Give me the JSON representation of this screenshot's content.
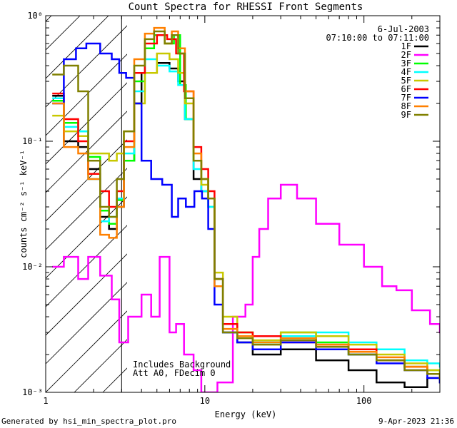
{
  "chart_data": {
    "type": "line",
    "title": "Count Spectra for RHESSI Front Segments",
    "xlabel": "Energy (keV)",
    "ylabel": "counts cm⁻² s⁻¹ keV⁻¹",
    "xscale": "log",
    "yscale": "log",
    "xlim": [
      1,
      300
    ],
    "ylim": [
      0.001,
      1
    ],
    "xticks": [
      {
        "v": 1,
        "label": "1"
      },
      {
        "v": 10,
        "label": "10"
      },
      {
        "v": 100,
        "label": "100"
      }
    ],
    "yticks": [
      {
        "v": 0.001,
        "label": "10⁻³"
      },
      {
        "v": 0.01,
        "label": "10⁻²"
      },
      {
        "v": 0.1,
        "label": "10⁻¹"
      },
      {
        "v": 1,
        "label": "10⁰"
      }
    ],
    "legend_position": "top-right",
    "date": "6-Jul-2003",
    "time_range": "07:10:00 to 07:11:00",
    "annotations": [
      "Includes Background",
      "Att A0, FDecim 0"
    ],
    "low_energy_cutoff_keV": 3,
    "footer_left": "Generated by hsi_min_spectra_plot.pro",
    "footer_right": "9-Apr-2023 21:36",
    "series": [
      {
        "name": "1F",
        "color": "#000000",
        "points": [
          [
            1.1,
            0.23
          ],
          [
            1.3,
            0.1
          ],
          [
            1.6,
            0.09
          ],
          [
            1.85,
            0.06
          ],
          [
            2.2,
            0.025
          ],
          [
            2.5,
            0.02
          ],
          [
            2.8,
            0.03
          ],
          [
            3.1,
            0.07
          ],
          [
            3.6,
            0.2
          ],
          [
            4.0,
            0.35
          ],
          [
            5.0,
            0.42
          ],
          [
            6.0,
            0.38
          ],
          [
            6.8,
            0.3
          ],
          [
            7.5,
            0.15
          ],
          [
            8.5,
            0.05
          ],
          [
            9.5,
            0.04
          ],
          [
            10.5,
            0.035
          ],
          [
            11.5,
            0.008
          ],
          [
            13,
            0.003
          ],
          [
            16,
            0.0025
          ],
          [
            20,
            0.002
          ],
          [
            30,
            0.0022
          ],
          [
            50,
            0.0018
          ],
          [
            80,
            0.0015
          ],
          [
            120,
            0.0012
          ],
          [
            180,
            0.0011
          ],
          [
            250,
            0.0013
          ],
          [
            300,
            0.0012
          ]
        ]
      },
      {
        "name": "2F",
        "color": "#ff00ff",
        "points": [
          [
            1.1,
            0.01
          ],
          [
            1.3,
            0.012
          ],
          [
            1.6,
            0.008
          ],
          [
            1.85,
            0.012
          ],
          [
            2.2,
            0.0085
          ],
          [
            2.6,
            0.0055
          ],
          [
            2.9,
            0.0025
          ],
          [
            3.3,
            0.004
          ],
          [
            4.0,
            0.006
          ],
          [
            4.6,
            0.004
          ],
          [
            5.2,
            0.012
          ],
          [
            6.0,
            0.003
          ],
          [
            6.6,
            0.0035
          ],
          [
            7.4,
            0.002
          ],
          [
            8.5,
            0.0015
          ],
          [
            9.5,
            0.001
          ],
          [
            12,
            0.0012
          ],
          [
            15,
            0.004
          ],
          [
            18,
            0.005
          ],
          [
            20,
            0.012
          ],
          [
            22,
            0.02
          ],
          [
            25,
            0.035
          ],
          [
            30,
            0.045
          ],
          [
            38,
            0.035
          ],
          [
            50,
            0.022
          ],
          [
            70,
            0.015
          ],
          [
            100,
            0.01
          ],
          [
            130,
            0.007
          ],
          [
            160,
            0.0065
          ],
          [
            200,
            0.0045
          ],
          [
            260,
            0.0035
          ],
          [
            300,
            0.003
          ]
        ]
      },
      {
        "name": "3F",
        "color": "#00ff00",
        "points": [
          [
            1.1,
            0.21
          ],
          [
            1.3,
            0.14
          ],
          [
            1.6,
            0.12
          ],
          [
            1.85,
            0.075
          ],
          [
            2.2,
            0.028
          ],
          [
            2.5,
            0.022
          ],
          [
            2.8,
            0.034
          ],
          [
            3.1,
            0.07
          ],
          [
            3.6,
            0.3
          ],
          [
            4.2,
            0.55
          ],
          [
            4.8,
            0.7
          ],
          [
            5.6,
            0.6
          ],
          [
            6.4,
            0.7
          ],
          [
            7.0,
            0.28
          ],
          [
            7.6,
            0.15
          ],
          [
            8.5,
            0.07
          ],
          [
            9.5,
            0.05
          ],
          [
            10.5,
            0.03
          ],
          [
            11.5,
            0.008
          ],
          [
            13,
            0.0035
          ],
          [
            16,
            0.003
          ],
          [
            20,
            0.0025
          ],
          [
            30,
            0.003
          ],
          [
            50,
            0.0025
          ],
          [
            80,
            0.002
          ],
          [
            120,
            0.0018
          ],
          [
            180,
            0.0016
          ],
          [
            250,
            0.0015
          ],
          [
            300,
            0.0014
          ]
        ]
      },
      {
        "name": "4F",
        "color": "#00ffff",
        "points": [
          [
            1.1,
            0.22
          ],
          [
            1.3,
            0.13
          ],
          [
            1.6,
            0.12
          ],
          [
            1.85,
            0.05
          ],
          [
            2.2,
            0.023
          ],
          [
            2.5,
            0.025
          ],
          [
            2.8,
            0.035
          ],
          [
            3.1,
            0.08
          ],
          [
            3.6,
            0.25
          ],
          [
            4.2,
            0.45
          ],
          [
            5.0,
            0.4
          ],
          [
            6.0,
            0.36
          ],
          [
            6.8,
            0.28
          ],
          [
            7.5,
            0.15
          ],
          [
            8.5,
            0.06
          ],
          [
            9.5,
            0.04
          ],
          [
            10.5,
            0.03
          ],
          [
            11.5,
            0.007
          ],
          [
            13,
            0.003
          ],
          [
            16,
            0.0028
          ],
          [
            20,
            0.0025
          ],
          [
            30,
            0.0028
          ],
          [
            50,
            0.003
          ],
          [
            80,
            0.0025
          ],
          [
            120,
            0.0022
          ],
          [
            180,
            0.0018
          ],
          [
            250,
            0.0017
          ],
          [
            300,
            0.0016
          ]
        ]
      },
      {
        "name": "5F",
        "color": "#c8c800",
        "points": [
          [
            1.1,
            0.16
          ],
          [
            1.3,
            0.12
          ],
          [
            1.6,
            0.11
          ],
          [
            1.85,
            0.08
          ],
          [
            2.2,
            0.08
          ],
          [
            2.5,
            0.07
          ],
          [
            2.8,
            0.08
          ],
          [
            3.1,
            0.12
          ],
          [
            3.6,
            0.2
          ],
          [
            4.2,
            0.35
          ],
          [
            5.0,
            0.5
          ],
          [
            6.0,
            0.45
          ],
          [
            6.8,
            0.35
          ],
          [
            7.5,
            0.2
          ],
          [
            8.5,
            0.07
          ],
          [
            9.5,
            0.045
          ],
          [
            10.5,
            0.035
          ],
          [
            11.5,
            0.009
          ],
          [
            13,
            0.004
          ],
          [
            16,
            0.003
          ],
          [
            20,
            0.0026
          ],
          [
            30,
            0.003
          ],
          [
            50,
            0.0028
          ],
          [
            80,
            0.0024
          ],
          [
            120,
            0.002
          ],
          [
            180,
            0.0017
          ],
          [
            250,
            0.0015
          ],
          [
            300,
            0.0014
          ]
        ]
      },
      {
        "name": "6F",
        "color": "#ff0000",
        "points": [
          [
            1.1,
            0.24
          ],
          [
            1.3,
            0.15
          ],
          [
            1.6,
            0.1
          ],
          [
            1.85,
            0.055
          ],
          [
            2.2,
            0.04
          ],
          [
            2.5,
            0.03
          ],
          [
            2.8,
            0.04
          ],
          [
            3.1,
            0.1
          ],
          [
            3.6,
            0.35
          ],
          [
            4.2,
            0.6
          ],
          [
            5.0,
            0.7
          ],
          [
            5.8,
            0.65
          ],
          [
            6.6,
            0.5
          ],
          [
            7.4,
            0.25
          ],
          [
            8.5,
            0.09
          ],
          [
            9.5,
            0.06
          ],
          [
            10.5,
            0.04
          ],
          [
            11.5,
            0.008
          ],
          [
            13,
            0.0035
          ],
          [
            16,
            0.003
          ],
          [
            20,
            0.0028
          ],
          [
            30,
            0.0025
          ],
          [
            50,
            0.0024
          ],
          [
            80,
            0.0022
          ],
          [
            120,
            0.0018
          ],
          [
            180,
            0.0016
          ],
          [
            250,
            0.0014
          ],
          [
            300,
            0.0013
          ]
        ]
      },
      {
        "name": "7F",
        "color": "#0000ff",
        "points": [
          [
            1.1,
            0.2
          ],
          [
            1.3,
            0.45
          ],
          [
            1.55,
            0.55
          ],
          [
            1.8,
            0.6
          ],
          [
            2.2,
            0.5
          ],
          [
            2.6,
            0.45
          ],
          [
            2.9,
            0.35
          ],
          [
            3.2,
            0.32
          ],
          [
            3.6,
            0.2
          ],
          [
            4.0,
            0.07
          ],
          [
            4.6,
            0.05
          ],
          [
            5.4,
            0.045
          ],
          [
            6.2,
            0.025
          ],
          [
            6.8,
            0.035
          ],
          [
            7.6,
            0.03
          ],
          [
            8.6,
            0.04
          ],
          [
            9.6,
            0.035
          ],
          [
            10.5,
            0.02
          ],
          [
            11.5,
            0.005
          ],
          [
            13,
            0.003
          ],
          [
            16,
            0.0025
          ],
          [
            20,
            0.0022
          ],
          [
            30,
            0.0025
          ],
          [
            50,
            0.0022
          ],
          [
            80,
            0.002
          ],
          [
            120,
            0.0017
          ],
          [
            180,
            0.0015
          ],
          [
            250,
            0.0013
          ],
          [
            300,
            0.0012
          ]
        ]
      },
      {
        "name": "8F",
        "color": "#ff8000",
        "points": [
          [
            1.1,
            0.2
          ],
          [
            1.3,
            0.09
          ],
          [
            1.6,
            0.08
          ],
          [
            1.85,
            0.05
          ],
          [
            2.2,
            0.018
          ],
          [
            2.5,
            0.017
          ],
          [
            2.8,
            0.03
          ],
          [
            3.1,
            0.09
          ],
          [
            3.6,
            0.45
          ],
          [
            4.2,
            0.72
          ],
          [
            4.8,
            0.8
          ],
          [
            5.6,
            0.6
          ],
          [
            6.2,
            0.75
          ],
          [
            6.8,
            0.55
          ],
          [
            7.5,
            0.25
          ],
          [
            8.5,
            0.08
          ],
          [
            9.5,
            0.05
          ],
          [
            10.5,
            0.035
          ],
          [
            11.5,
            0.007
          ],
          [
            13,
            0.0032
          ],
          [
            16,
            0.0028
          ],
          [
            20,
            0.0025
          ],
          [
            30,
            0.0027
          ],
          [
            50,
            0.0024
          ],
          [
            80,
            0.0021
          ],
          [
            120,
            0.0019
          ],
          [
            180,
            0.0016
          ],
          [
            250,
            0.0014
          ],
          [
            300,
            0.0013
          ]
        ]
      },
      {
        "name": "9F",
        "color": "#808000",
        "points": [
          [
            1.1,
            0.34
          ],
          [
            1.3,
            0.4
          ],
          [
            1.6,
            0.25
          ],
          [
            1.85,
            0.07
          ],
          [
            2.2,
            0.03
          ],
          [
            2.5,
            0.025
          ],
          [
            2.8,
            0.05
          ],
          [
            3.1,
            0.12
          ],
          [
            3.6,
            0.4
          ],
          [
            4.2,
            0.65
          ],
          [
            4.8,
            0.75
          ],
          [
            5.6,
            0.6
          ],
          [
            6.2,
            0.7
          ],
          [
            6.8,
            0.5
          ],
          [
            7.5,
            0.22
          ],
          [
            8.5,
            0.07
          ],
          [
            9.5,
            0.05
          ],
          [
            10.5,
            0.035
          ],
          [
            11.5,
            0.008
          ],
          [
            13,
            0.003
          ],
          [
            16,
            0.0027
          ],
          [
            20,
            0.0024
          ],
          [
            30,
            0.0026
          ],
          [
            50,
            0.0023
          ],
          [
            80,
            0.002
          ],
          [
            120,
            0.0018
          ],
          [
            180,
            0.0015
          ],
          [
            250,
            0.0014
          ],
          [
            300,
            0.0013
          ]
        ]
      }
    ]
  }
}
